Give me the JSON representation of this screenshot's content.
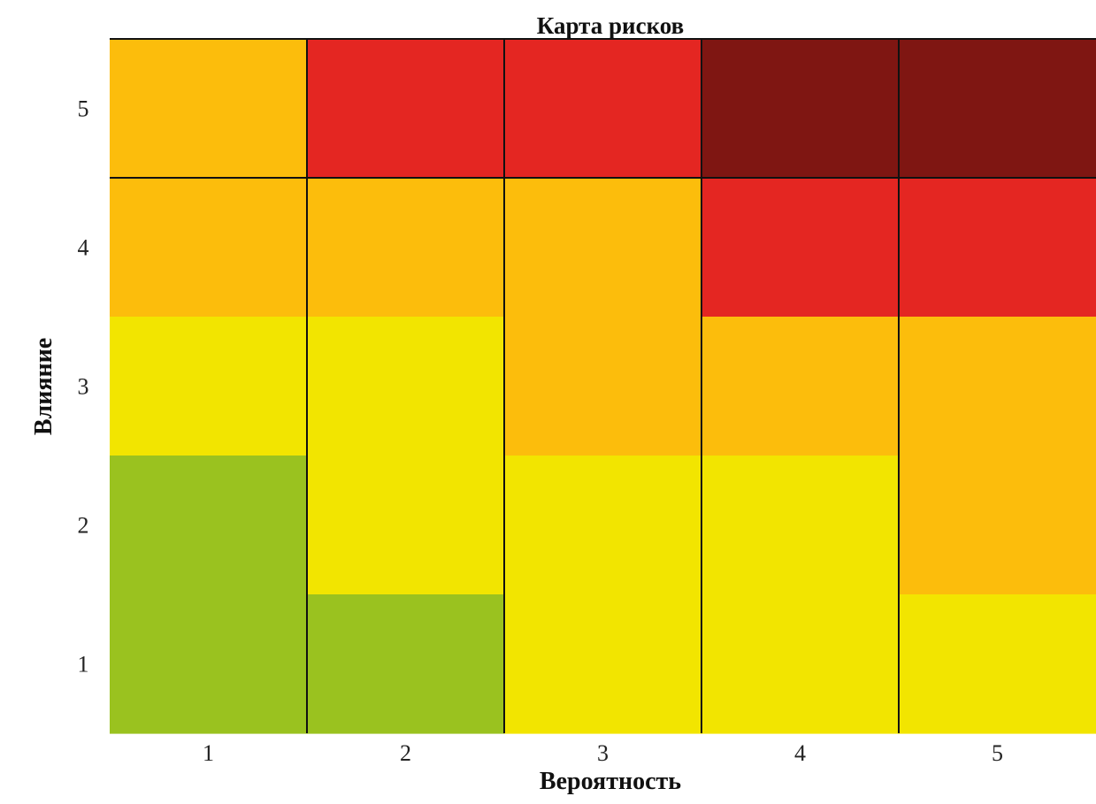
{
  "chart_data": {
    "type": "heatmap",
    "title": "Карта рисков",
    "xlabel": "Вероятность",
    "ylabel": "Влияние",
    "x_categories": [
      "1",
      "2",
      "3",
      "4",
      "5"
    ],
    "y_categories": [
      "1",
      "2",
      "3",
      "4",
      "5"
    ],
    "levels": {
      "low": "#9ac21f",
      "medium": "#f2e500",
      "high": "#fcbd0c",
      "very_high": "#e42622",
      "critical": "#7f1612"
    },
    "grid": [
      {
        "impact": "5",
        "cells": [
          "high",
          "very_high",
          "very_high",
          "critical",
          "critical"
        ]
      },
      {
        "impact": "4",
        "cells": [
          "high",
          "high",
          "high",
          "very_high",
          "very_high"
        ]
      },
      {
        "impact": "3",
        "cells": [
          "medium",
          "medium",
          "high",
          "high",
          "high"
        ]
      },
      {
        "impact": "2",
        "cells": [
          "low",
          "medium",
          "medium",
          "medium",
          "high"
        ]
      },
      {
        "impact": "1",
        "cells": [
          "low",
          "low",
          "medium",
          "medium",
          "medium"
        ]
      }
    ],
    "legend": "none",
    "grid_lines": "column separators and row separator between impact 4 and 5"
  }
}
